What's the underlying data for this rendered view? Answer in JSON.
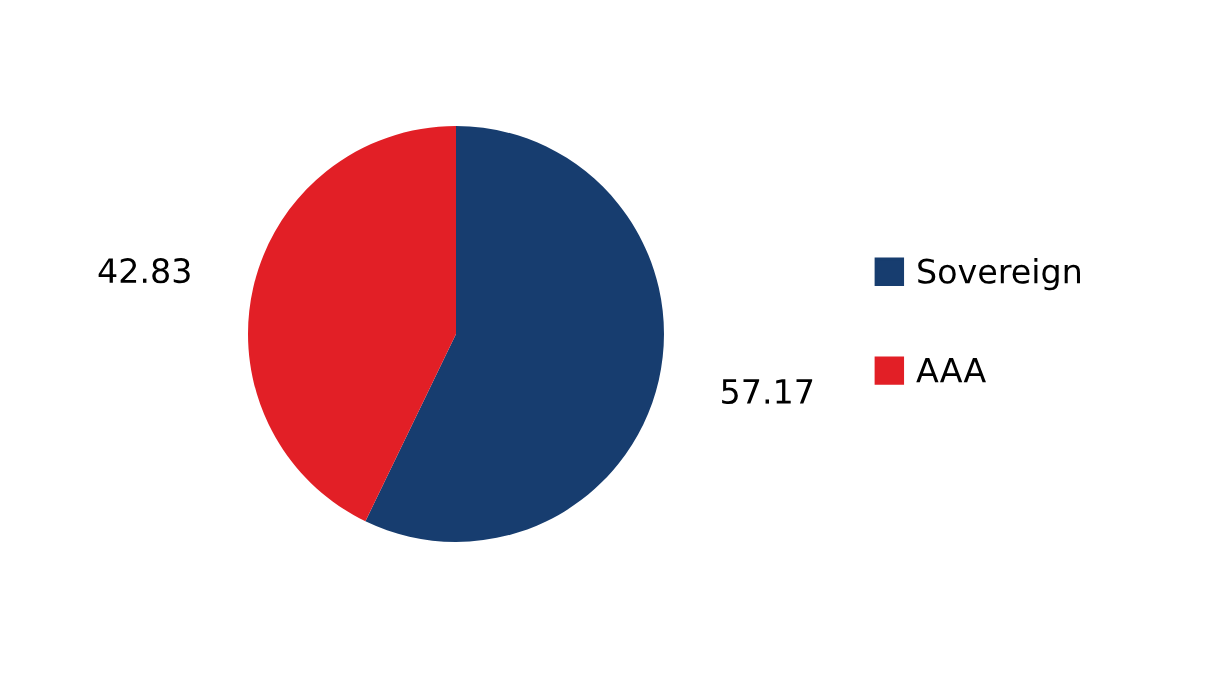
{
  "chart_data": {
    "type": "pie",
    "categories": [
      "Sovereign",
      "AAA"
    ],
    "values": [
      57.17,
      42.83
    ],
    "colors": [
      "#173d6f",
      "#e21f26"
    ],
    "data_labels": true,
    "legend": "right"
  }
}
